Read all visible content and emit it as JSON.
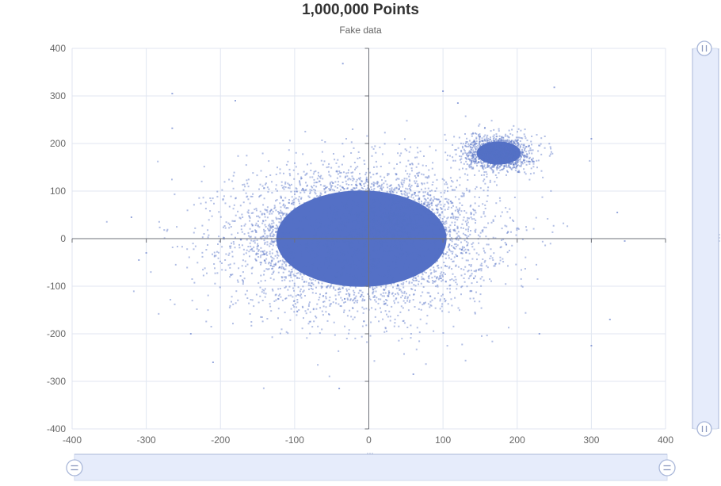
{
  "chart_data": {
    "type": "scatter",
    "title": "1,000,000 Points",
    "subtitle": "Fake data",
    "xlabel": "",
    "ylabel": "",
    "xlim": [
      -400,
      400
    ],
    "ylim": [
      -400,
      400
    ],
    "x_ticks": [
      -400,
      -300,
      -200,
      -100,
      0,
      100,
      200,
      300,
      400
    ],
    "y_ticks": [
      -400,
      -300,
      -200,
      -100,
      0,
      100,
      200,
      300,
      400
    ],
    "grid": true,
    "legend": "none",
    "point_color": "#5470c6",
    "series": [
      {
        "clusters": [
          {
            "center": [
              -10,
              0
            ],
            "sd": [
              85,
              75
            ],
            "approx_points": 700000
          },
          {
            "center": [
              40,
              40
            ],
            "sd": [
              30,
              25
            ],
            "approx_points": 100000
          },
          {
            "center": [
              175,
              180
            ],
            "sd": [
              22,
              18
            ],
            "approx_points": 200000
          }
        ],
        "outliers": [
          [
            -265,
            305
          ],
          [
            -35,
            368
          ],
          [
            100,
            310
          ],
          [
            250,
            318
          ],
          [
            -310,
            -45
          ],
          [
            -300,
            -30
          ],
          [
            -40,
            -315
          ],
          [
            325,
            -170
          ],
          [
            345,
            -5
          ],
          [
            300,
            210
          ],
          [
            -265,
            232
          ],
          [
            -180,
            290
          ],
          [
            120,
            285
          ],
          [
            -210,
            -260
          ],
          [
            -240,
            -200
          ],
          [
            230,
            -200
          ],
          [
            300,
            -225
          ],
          [
            -320,
            45
          ],
          [
            335,
            55
          ],
          [
            60,
            -285
          ]
        ]
      }
    ]
  },
  "datazoom": {
    "x_range": [
      0,
      100
    ],
    "y_range": [
      0,
      100
    ],
    "handle_color": "#e6ecfb"
  }
}
